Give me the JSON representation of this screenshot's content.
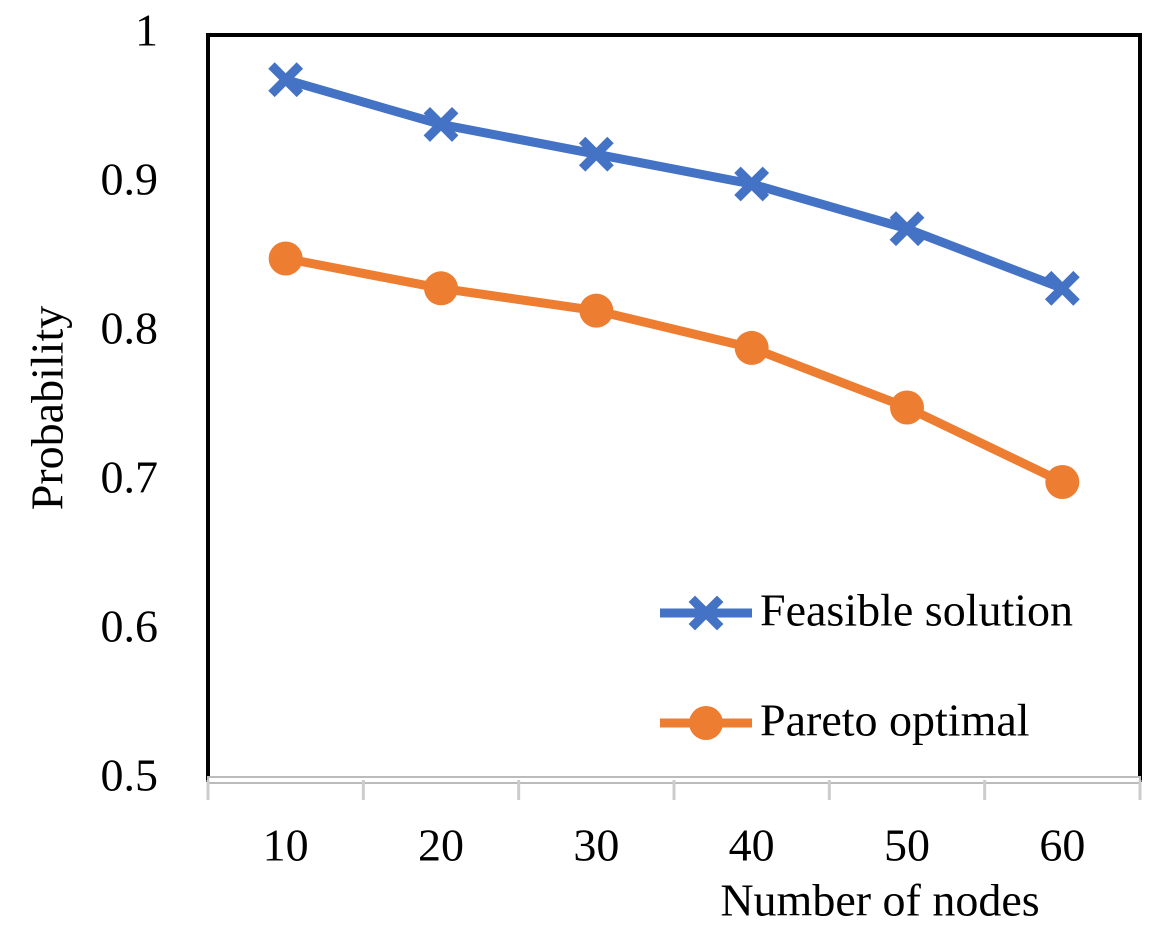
{
  "chart_data": {
    "type": "line",
    "x_label": "Number of nodes",
    "y_label": "Probability",
    "categories": [
      10,
      20,
      30,
      40,
      50,
      60
    ],
    "series": [
      {
        "name": "Feasible solution",
        "color": "#4472c4",
        "marker": "x",
        "values": [
          0.97,
          0.94,
          0.92,
          0.9,
          0.87,
          0.83
        ]
      },
      {
        "name": "Pareto optimal",
        "color": "#ed7d31",
        "marker": "circle",
        "values": [
          0.85,
          0.83,
          0.815,
          0.79,
          0.75,
          0.7
        ]
      }
    ],
    "ylim": [
      0.5,
      1
    ],
    "yticks": [
      0.5,
      0.6,
      0.7,
      0.8,
      0.9,
      1
    ],
    "grid": false,
    "legend": "lower-right"
  }
}
